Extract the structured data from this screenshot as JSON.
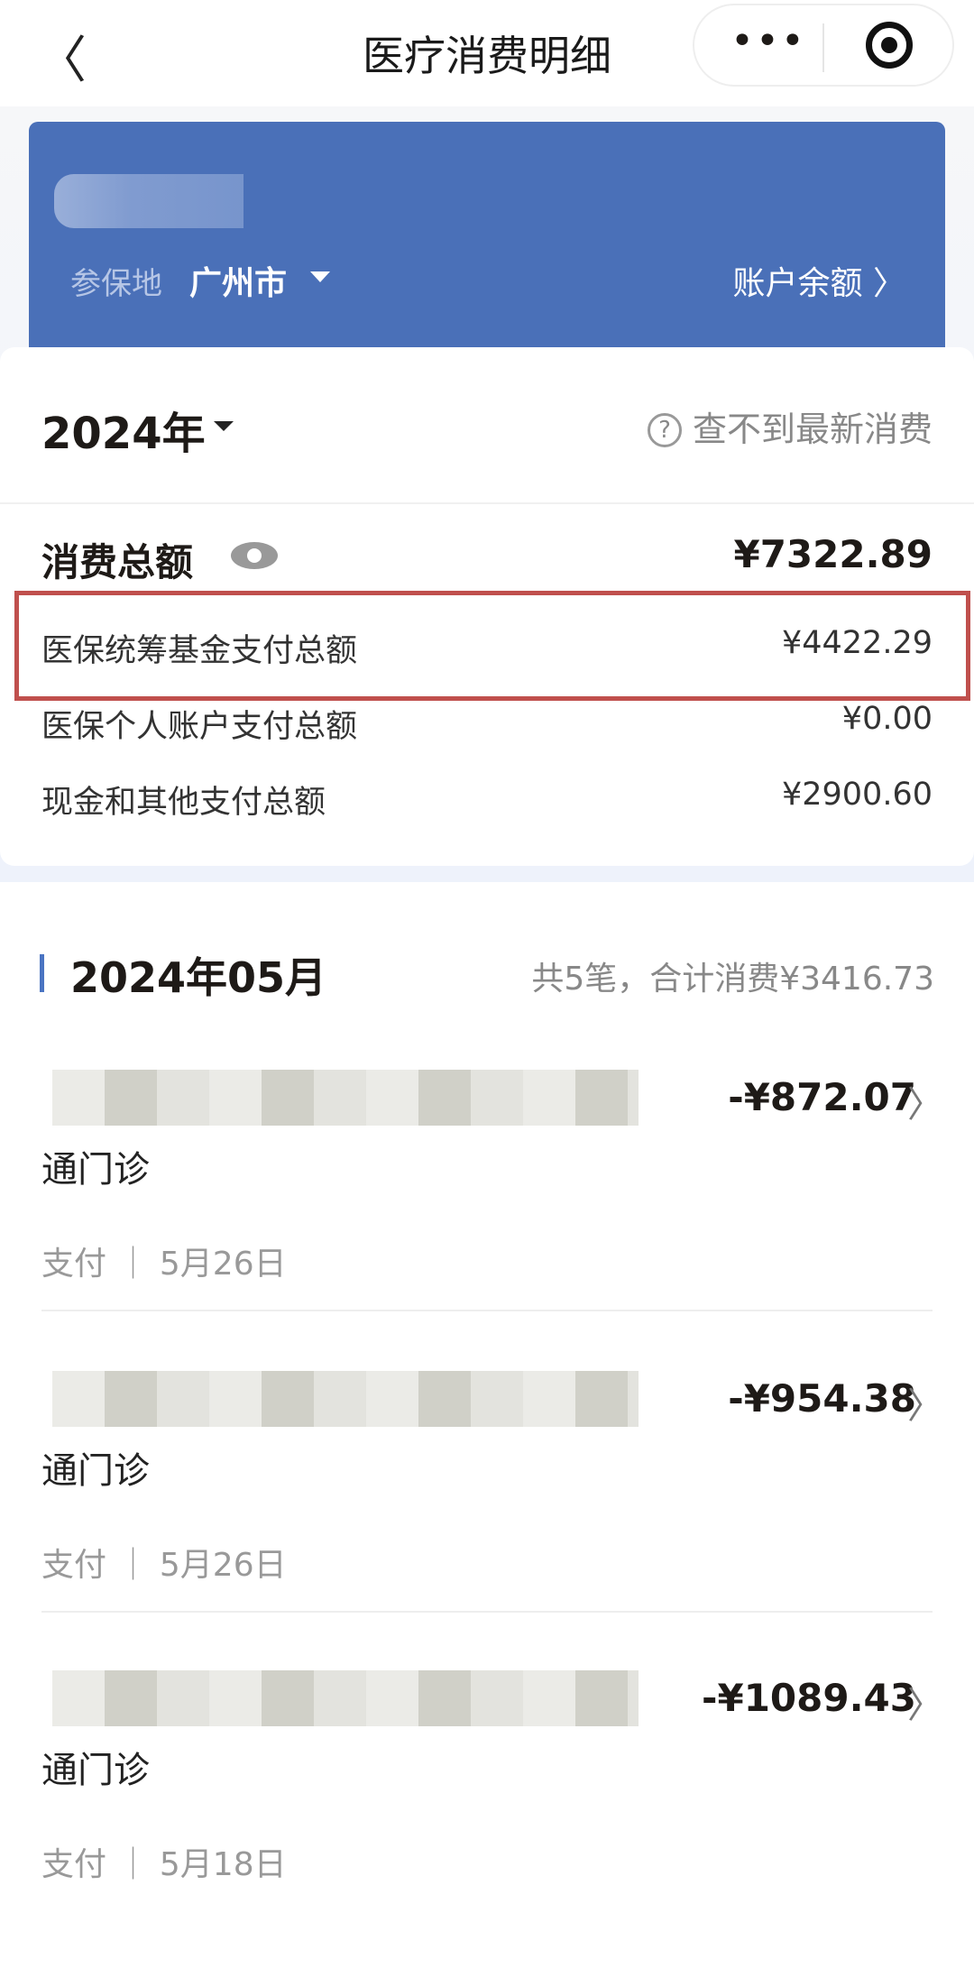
{
  "nav": {
    "title": "医疗消费明细",
    "back": "〈",
    "more": "•••"
  },
  "banner": {
    "region_label": "参保地",
    "region_value": "广州市",
    "balance_link": "账户余额 〉"
  },
  "summary": {
    "year": "2024年",
    "help": "查不到最新消费",
    "total_label": "消费总额",
    "total_value": "¥7322.89",
    "rows": [
      {
        "label": "医保统筹基金支付总额",
        "value": "¥4422.29",
        "highlighted": true
      },
      {
        "label": "医保个人账户支付总额",
        "value": "¥0.00"
      },
      {
        "label": "现金和其他支付总额",
        "value": "¥2900.60"
      }
    ]
  },
  "month": {
    "title": "2024年05月",
    "summary": "共5笔，合计消费¥3416.73",
    "items": [
      {
        "title": "通门诊",
        "amount": "-¥872.07",
        "meta": "支付 ｜ 5月26日"
      },
      {
        "title": "通门诊",
        "amount": "-¥954.38",
        "meta": "支付 ｜ 5月26日"
      },
      {
        "title": "通门诊",
        "amount": "-¥1089.43",
        "meta": "支付 ｜ 5月18日"
      }
    ]
  },
  "colors": {
    "banner": "#4a70b8",
    "highlight_border": "#c0504d",
    "accent": "#4a74c2"
  }
}
